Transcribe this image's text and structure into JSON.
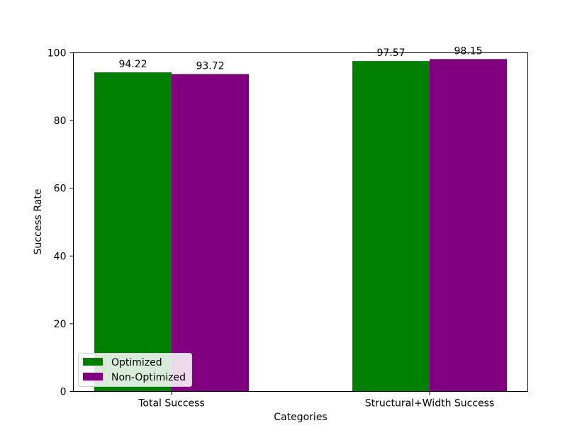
{
  "chart_data": {
    "type": "bar",
    "categories": [
      "Total Success",
      "Structural+Width Success"
    ],
    "series": [
      {
        "name": "Optimized",
        "values": [
          94.22,
          97.57
        ],
        "color": "#008000"
      },
      {
        "name": "Non-Optimized",
        "values": [
          93.72,
          98.15
        ],
        "color": "#800080"
      }
    ],
    "data_labels": [
      [
        "94.22",
        "97.57"
      ],
      [
        "93.72",
        "98.15"
      ]
    ],
    "title": "",
    "xlabel": "Categories",
    "ylabel": "Success Rate",
    "ylim": [
      0,
      100
    ],
    "yticks": [
      0,
      20,
      40,
      60,
      80,
      100
    ],
    "grid": false,
    "legend_position": "lower-left"
  }
}
